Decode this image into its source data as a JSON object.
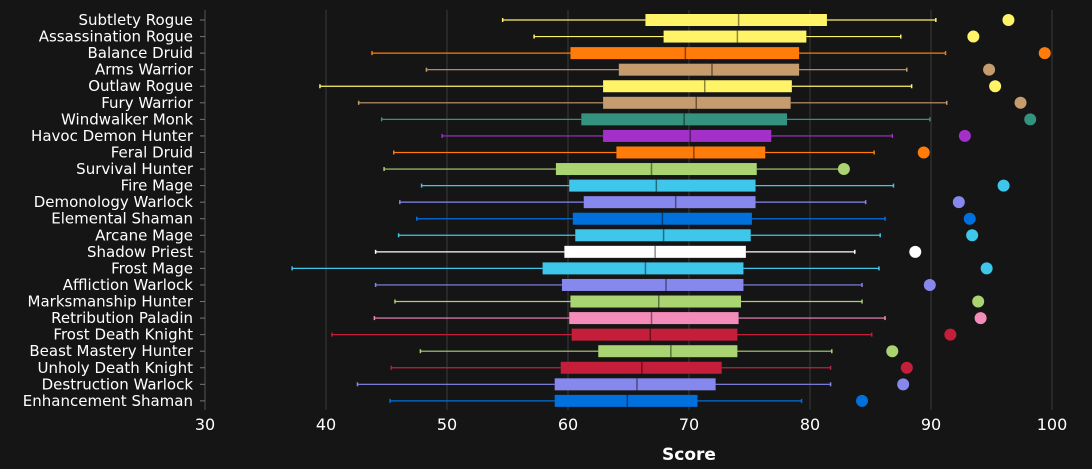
{
  "chart_data": {
    "type": "box",
    "xlabel": "Score",
    "xlim": [
      30,
      100
    ],
    "xticks": [
      30,
      40,
      50,
      60,
      70,
      80,
      90,
      100
    ],
    "grid": "vertical",
    "orientation": "horizontal",
    "series": [
      {
        "name": "Subtlety Rogue",
        "color": "#FFF468",
        "whisker_low": 54.6,
        "q1": 66.4,
        "median": 74.1,
        "q3": 81.4,
        "whisker_high": 90.4,
        "top": 96.4
      },
      {
        "name": "Assassination Rogue",
        "color": "#FFF468",
        "whisker_low": 57.2,
        "q1": 67.9,
        "median": 74.0,
        "q3": 79.7,
        "whisker_high": 87.5,
        "top": 93.5
      },
      {
        "name": "Balance Druid",
        "color": "#FF7C0A",
        "whisker_low": 43.8,
        "q1": 60.2,
        "median": 69.7,
        "q3": 79.1,
        "whisker_high": 91.2,
        "top": 99.4
      },
      {
        "name": "Arms Warrior",
        "color": "#C69B6D",
        "whisker_low": 48.3,
        "q1": 64.2,
        "median": 71.9,
        "q3": 79.1,
        "whisker_high": 88.0,
        "top": 94.8
      },
      {
        "name": "Outlaw Rogue",
        "color": "#FFF468",
        "whisker_low": 39.5,
        "q1": 62.9,
        "median": 71.3,
        "q3": 78.5,
        "whisker_high": 88.4,
        "top": 95.3
      },
      {
        "name": "Fury Warrior",
        "color": "#C69B6D",
        "whisker_low": 42.7,
        "q1": 62.9,
        "median": 70.6,
        "q3": 78.4,
        "whisker_high": 91.3,
        "top": 97.4
      },
      {
        "name": "Windwalker Monk",
        "color": "#33937F",
        "whisker_low": 44.6,
        "q1": 61.1,
        "median": 69.6,
        "q3": 78.1,
        "whisker_high": 89.9,
        "top": 98.2
      },
      {
        "name": "Havoc Demon Hunter",
        "color": "#A330C9",
        "whisker_low": 49.6,
        "q1": 62.9,
        "median": 70.1,
        "q3": 76.8,
        "whisker_high": 86.8,
        "top": 92.8
      },
      {
        "name": "Feral Druid",
        "color": "#FF7C0A",
        "whisker_low": 45.6,
        "q1": 64.0,
        "median": 70.4,
        "q3": 76.3,
        "whisker_high": 85.3,
        "top": 89.4
      },
      {
        "name": "Survival Hunter",
        "color": "#AAD372",
        "whisker_low": 44.8,
        "q1": 59.0,
        "median": 66.9,
        "q3": 75.6,
        "whisker_high": 82.8,
        "top": 82.8
      },
      {
        "name": "Fire Mage",
        "color": "#3FC7EB",
        "whisker_low": 47.9,
        "q1": 60.1,
        "median": 67.3,
        "q3": 75.5,
        "whisker_high": 86.9,
        "top": 96.0
      },
      {
        "name": "Demonology Warlock",
        "color": "#8788EE",
        "whisker_low": 46.1,
        "q1": 61.3,
        "median": 68.9,
        "q3": 75.5,
        "whisker_high": 84.6,
        "top": 92.3
      },
      {
        "name": "Elemental Shaman",
        "color": "#0070DD",
        "whisker_low": 47.5,
        "q1": 60.4,
        "median": 67.8,
        "q3": 75.2,
        "whisker_high": 86.2,
        "top": 93.2
      },
      {
        "name": "Arcane Mage",
        "color": "#3FC7EB",
        "whisker_low": 46.0,
        "q1": 60.6,
        "median": 67.9,
        "q3": 75.1,
        "whisker_high": 85.8,
        "top": 93.4
      },
      {
        "name": "Shadow Priest",
        "color": "#FFFFFF",
        "whisker_low": 44.1,
        "q1": 59.7,
        "median": 67.2,
        "q3": 74.7,
        "whisker_high": 83.7,
        "top": 88.7
      },
      {
        "name": "Frost Mage",
        "color": "#3FC7EB",
        "whisker_low": 37.2,
        "q1": 57.9,
        "median": 66.4,
        "q3": 74.5,
        "whisker_high": 85.7,
        "top": 94.6
      },
      {
        "name": "Affliction Warlock",
        "color": "#8788EE",
        "whisker_low": 44.1,
        "q1": 59.5,
        "median": 68.1,
        "q3": 74.5,
        "whisker_high": 84.3,
        "top": 89.9
      },
      {
        "name": "Marksmanship Hunter",
        "color": "#AAD372",
        "whisker_low": 45.7,
        "q1": 60.2,
        "median": 67.5,
        "q3": 74.3,
        "whisker_high": 84.3,
        "top": 93.9
      },
      {
        "name": "Retribution Paladin",
        "color": "#F48CBA",
        "whisker_low": 44.0,
        "q1": 60.1,
        "median": 66.9,
        "q3": 74.1,
        "whisker_high": 86.2,
        "top": 94.1
      },
      {
        "name": "Frost Death Knight",
        "color": "#C41E3A",
        "whisker_low": 40.5,
        "q1": 60.3,
        "median": 66.8,
        "q3": 74.0,
        "whisker_high": 85.1,
        "top": 91.6
      },
      {
        "name": "Beast Mastery Hunter",
        "color": "#AAD372",
        "whisker_low": 47.8,
        "q1": 62.5,
        "median": 68.5,
        "q3": 74.0,
        "whisker_high": 81.8,
        "top": 86.8
      },
      {
        "name": "Unholy Death Knight",
        "color": "#C41E3A",
        "whisker_low": 45.4,
        "q1": 59.4,
        "median": 66.1,
        "q3": 72.7,
        "whisker_high": 81.7,
        "top": 88.0
      },
      {
        "name": "Destruction Warlock",
        "color": "#8788EE",
        "whisker_low": 42.6,
        "q1": 58.9,
        "median": 65.7,
        "q3": 72.2,
        "whisker_high": 81.7,
        "top": 87.7
      },
      {
        "name": "Enhancement Shaman",
        "color": "#0070DD",
        "whisker_low": 45.3,
        "q1": 58.9,
        "median": 64.9,
        "q3": 70.7,
        "whisker_high": 79.3,
        "top": 84.3
      }
    ]
  }
}
